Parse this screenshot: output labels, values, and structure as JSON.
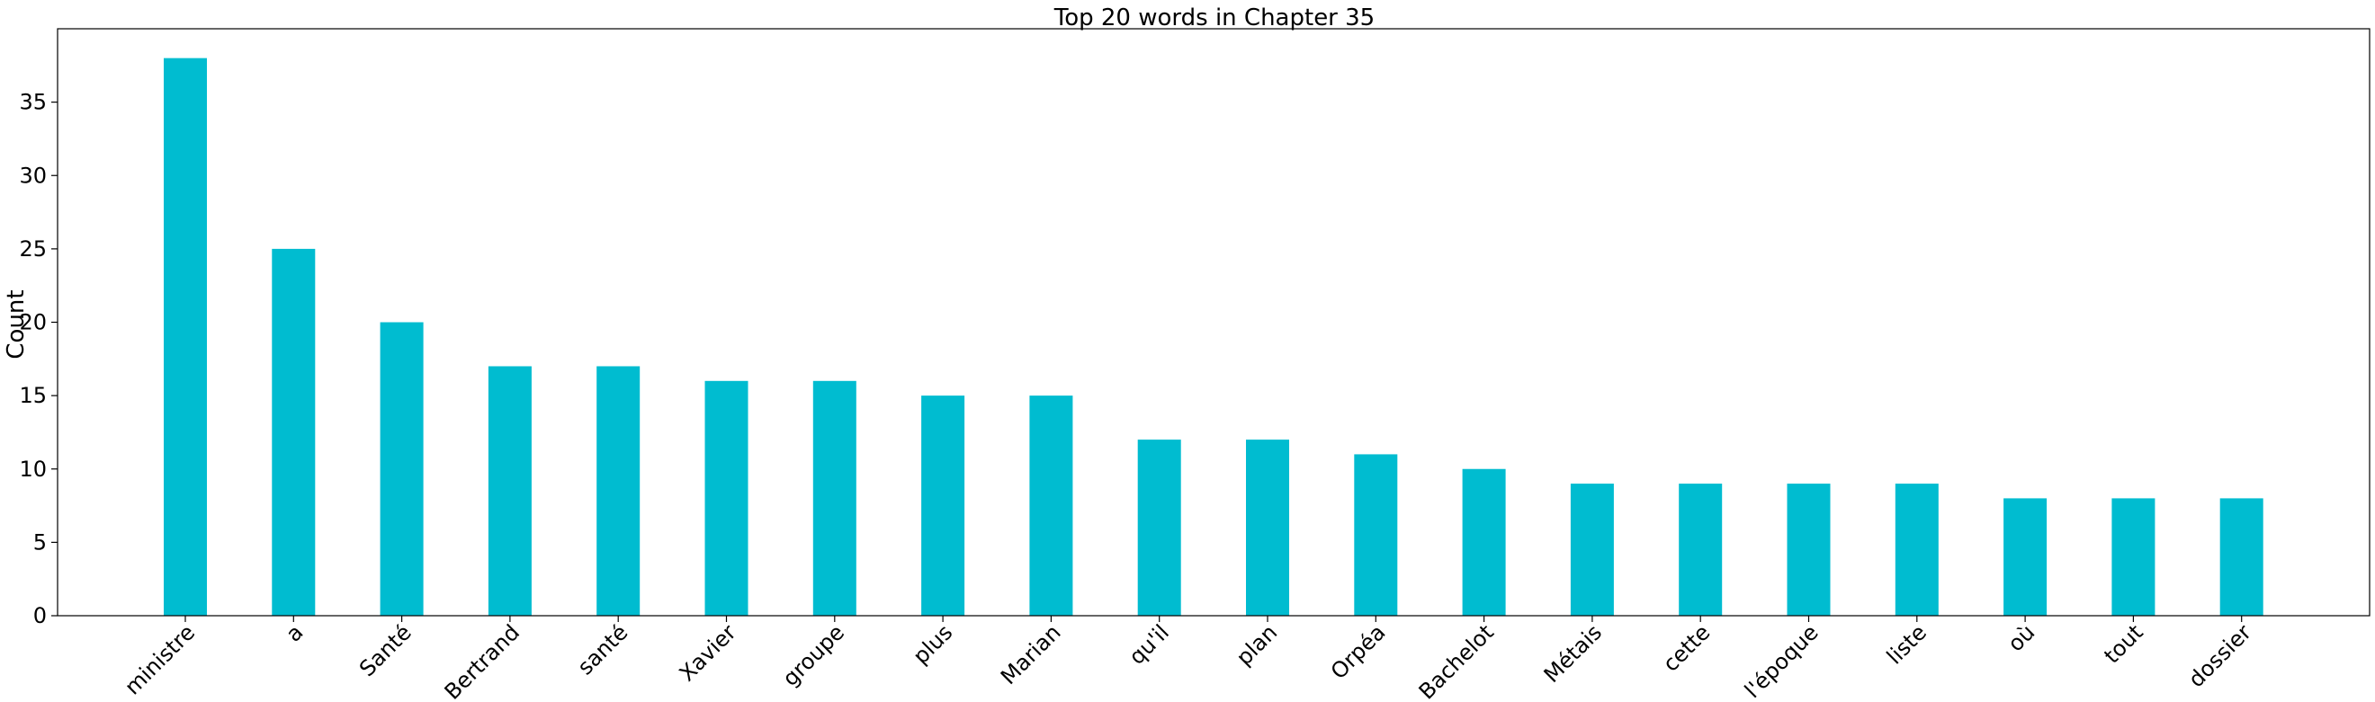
{
  "chart_data": {
    "type": "bar",
    "title": "Top 20 words in Chapter 35",
    "xlabel": "",
    "ylabel": "Count",
    "categories": [
      "ministre",
      "a",
      "Santé",
      "Bertrand",
      "santé",
      "Xavier",
      "groupe",
      "plus",
      "Marian",
      "qu'il",
      "plan",
      "Orpéa",
      "Bachelot",
      "Métais",
      "cette",
      "l'époque",
      "liste",
      "où",
      "tout",
      "dossier"
    ],
    "values": [
      38,
      25,
      20,
      17,
      17,
      16,
      16,
      15,
      15,
      12,
      12,
      11,
      10,
      9,
      9,
      9,
      9,
      8,
      8,
      8
    ],
    "ylim": [
      0,
      40
    ],
    "yticks": [
      0,
      5,
      10,
      15,
      20,
      25,
      30,
      35
    ],
    "bar_color": "#00bcd0",
    "grid": false,
    "legend": "none"
  }
}
